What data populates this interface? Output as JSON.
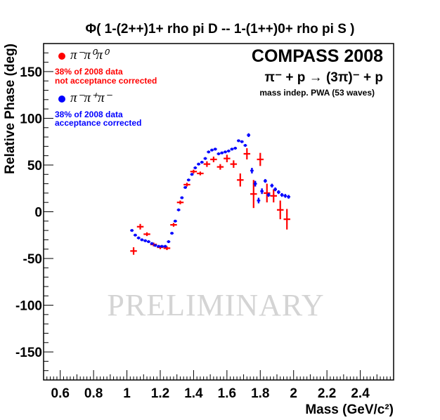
{
  "chart_data": {
    "type": "scatter",
    "title": "Φ( 1-(2++)1+ rho pi D  --  1-(1++)0+ rho pi S )",
    "xlabel": "Mass (GeV/c²)",
    "ylabel": "Relative Phase (deg)",
    "xlim": [
      0.5,
      2.6
    ],
    "ylim": [
      -180,
      180
    ],
    "x_ticks": [
      "0.6",
      "0.8",
      "1",
      "1.2",
      "1.4",
      "1.6",
      "1.8",
      "2",
      "2.2",
      "2.4"
    ],
    "y_ticks": [
      "150",
      "100",
      "50",
      "0",
      "-50",
      "-100",
      "-150"
    ],
    "grid": false,
    "legend_position": "top-left",
    "experiment_label": "COMPASS 2008",
    "reaction": "π⁻ + p → (3π)⁻ + p",
    "method_note": "mass indep. PWA (53 waves)",
    "watermark": "PRELIMINARY",
    "series": [
      {
        "name": "π⁻π⁰π⁰",
        "note_line1": "38% of 2008 data",
        "note_line2": "not acceptance corrected",
        "color": "#ff0000",
        "x_halfwidth": 0.02,
        "points": [
          {
            "x": 1.04,
            "y": -42,
            "err": 4
          },
          {
            "x": 1.08,
            "y": -16,
            "err": 3
          },
          {
            "x": 1.12,
            "y": -24,
            "err": 2
          },
          {
            "x": 1.16,
            "y": -35,
            "err": 2
          },
          {
            "x": 1.2,
            "y": -38,
            "err": 2
          },
          {
            "x": 1.24,
            "y": -39,
            "err": 2
          },
          {
            "x": 1.28,
            "y": -14,
            "err": 2
          },
          {
            "x": 1.32,
            "y": 10,
            "err": 2
          },
          {
            "x": 1.36,
            "y": 29,
            "err": 2
          },
          {
            "x": 1.4,
            "y": 43,
            "err": 2
          },
          {
            "x": 1.44,
            "y": 41,
            "err": 2
          },
          {
            "x": 1.48,
            "y": 51,
            "err": 3
          },
          {
            "x": 1.52,
            "y": 56,
            "err": 3
          },
          {
            "x": 1.56,
            "y": 48,
            "err": 3
          },
          {
            "x": 1.6,
            "y": 57,
            "err": 4
          },
          {
            "x": 1.64,
            "y": 51,
            "err": 4
          },
          {
            "x": 1.68,
            "y": 34,
            "err": 7
          },
          {
            "x": 1.72,
            "y": 62,
            "err": 6
          },
          {
            "x": 1.76,
            "y": 19,
            "err": 15
          },
          {
            "x": 1.8,
            "y": 56,
            "err": 7
          },
          {
            "x": 1.84,
            "y": 20,
            "err": 10
          },
          {
            "x": 1.88,
            "y": 17,
            "err": 7
          },
          {
            "x": 1.92,
            "y": 2,
            "err": 10
          },
          {
            "x": 1.96,
            "y": -8,
            "err": 11
          }
        ]
      },
      {
        "name": "π⁻π⁺π⁻",
        "note_line1": "38% of 2008 data",
        "note_line2": "acceptance corrected",
        "color": "#0000ff",
        "x_halfwidth": 0.01,
        "points": [
          {
            "x": 1.03,
            "y": -20,
            "err": 1.5
          },
          {
            "x": 1.05,
            "y": -25,
            "err": 1.5
          },
          {
            "x": 1.07,
            "y": -28,
            "err": 1.5
          },
          {
            "x": 1.09,
            "y": -30,
            "err": 1.5
          },
          {
            "x": 1.11,
            "y": -31,
            "err": 1.5
          },
          {
            "x": 1.13,
            "y": -32,
            "err": 1.5
          },
          {
            "x": 1.15,
            "y": -34,
            "err": 1.5
          },
          {
            "x": 1.17,
            "y": -36,
            "err": 1.5
          },
          {
            "x": 1.19,
            "y": -37,
            "err": 1.5
          },
          {
            "x": 1.21,
            "y": -37,
            "err": 1.5
          },
          {
            "x": 1.23,
            "y": -37,
            "err": 1.5
          },
          {
            "x": 1.25,
            "y": -32,
            "err": 1.5
          },
          {
            "x": 1.27,
            "y": -23,
            "err": 1.5
          },
          {
            "x": 1.29,
            "y": -10,
            "err": 1.5
          },
          {
            "x": 1.31,
            "y": 2,
            "err": 1.5
          },
          {
            "x": 1.33,
            "y": 15,
            "err": 1.5
          },
          {
            "x": 1.35,
            "y": 26,
            "err": 1.5
          },
          {
            "x": 1.37,
            "y": 34,
            "err": 1.5
          },
          {
            "x": 1.39,
            "y": 40,
            "err": 1.5
          },
          {
            "x": 1.41,
            "y": 47,
            "err": 1.5
          },
          {
            "x": 1.43,
            "y": 51,
            "err": 1.5
          },
          {
            "x": 1.45,
            "y": 53,
            "err": 1.5
          },
          {
            "x": 1.47,
            "y": 57,
            "err": 1.5
          },
          {
            "x": 1.49,
            "y": 64,
            "err": 1.5
          },
          {
            "x": 1.51,
            "y": 66,
            "err": 1.5
          },
          {
            "x": 1.53,
            "y": 67,
            "err": 1.5
          },
          {
            "x": 1.55,
            "y": 62,
            "err": 1.5
          },
          {
            "x": 1.57,
            "y": 63,
            "err": 1.5
          },
          {
            "x": 1.59,
            "y": 64,
            "err": 1.5
          },
          {
            "x": 1.61,
            "y": 65,
            "err": 1.5
          },
          {
            "x": 1.63,
            "y": 67,
            "err": 1.5
          },
          {
            "x": 1.65,
            "y": 68,
            "err": 1.5
          },
          {
            "x": 1.67,
            "y": 76,
            "err": 1.5
          },
          {
            "x": 1.69,
            "y": 75,
            "err": 1.5
          },
          {
            "x": 1.71,
            "y": 71,
            "err": 1.5
          },
          {
            "x": 1.73,
            "y": 82,
            "err": 2
          },
          {
            "x": 1.75,
            "y": 44,
            "err": 3
          },
          {
            "x": 1.77,
            "y": 30,
            "err": 3
          },
          {
            "x": 1.79,
            "y": 12,
            "err": 3
          },
          {
            "x": 1.81,
            "y": 22,
            "err": 3
          },
          {
            "x": 1.83,
            "y": 33,
            "err": 2
          },
          {
            "x": 1.85,
            "y": 18,
            "err": 2
          },
          {
            "x": 1.87,
            "y": 28,
            "err": 2
          },
          {
            "x": 1.89,
            "y": 24,
            "err": 2
          },
          {
            "x": 1.91,
            "y": 21,
            "err": 2
          },
          {
            "x": 1.93,
            "y": 18,
            "err": 2
          },
          {
            "x": 1.95,
            "y": 17,
            "err": 2
          },
          {
            "x": 1.97,
            "y": 16,
            "err": 2
          }
        ]
      }
    ]
  }
}
